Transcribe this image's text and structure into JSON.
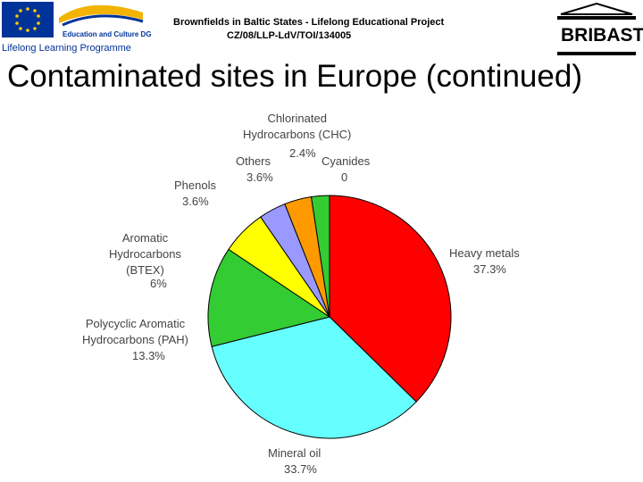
{
  "header": {
    "line1": "Brownfields in Baltic States - Lifelong Educational Project",
    "line2": "CZ/08/LLP-LdV/TOI/134005",
    "logo_left": "Education and Culture DG",
    "logo_left_sub": "Lifelong Learning Programme",
    "logo_right": "BRIBAST"
  },
  "chart_data": {
    "type": "pie",
    "title": "Contaminated sites in Europe (continued)",
    "categories": [
      "Heavy metals",
      "Mineral oil",
      "Polycyclic Aromatic\nHydrocarbons (PAH)",
      "Aromatic\nHydrocarbons\n(BTEX)",
      "Phenols",
      "Others",
      "Chlorinated\nHydrocarbons (CHC)",
      "Cyanides"
    ],
    "values": [
      37.3,
      33.7,
      13.3,
      6,
      3.6,
      3.6,
      2.4,
      0
    ],
    "value_labels": [
      "37.3%",
      "33.7%",
      "13.3%",
      "6%",
      "3.6%",
      "3.6%",
      "2.4%",
      "0"
    ],
    "colors": [
      "#ff0000",
      "#66ffff",
      "#33cc33",
      "#ffff00",
      "#9999ff",
      "#ff9900",
      "#33cc33",
      "#ffffff"
    ]
  }
}
